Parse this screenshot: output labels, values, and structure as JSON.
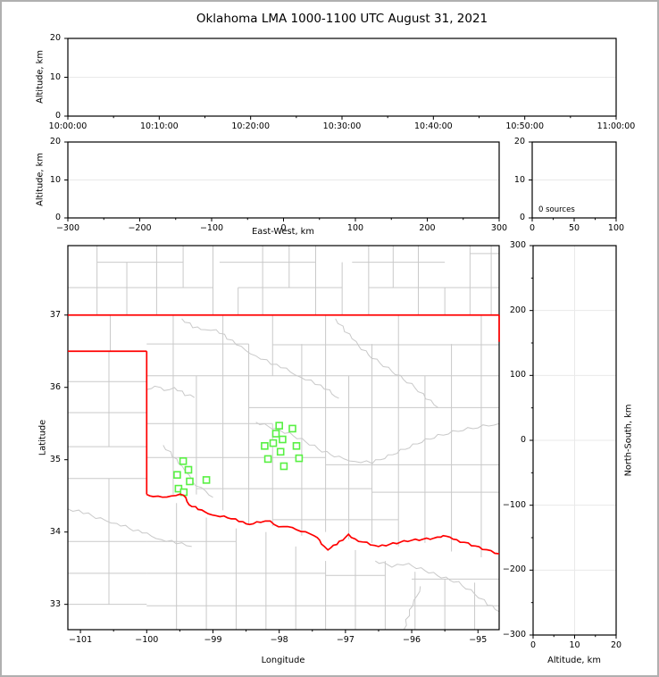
{
  "title": "Oklahoma LMA 1000-1100 UTC August 31, 2021",
  "chart_data": {
    "type": "scatter",
    "style": {
      "state_border_color": "#ff0000",
      "county_color": "#c9c9c9",
      "river_color": "#c9c9c9",
      "station_color": "#58f043",
      "grid_color": "#e9e9e9",
      "axis_color": "#000000"
    },
    "panels": {
      "time_height": {
        "ylabel": "Altitude, km",
        "yticks": [
          0,
          10,
          20
        ],
        "ylim": [
          0,
          20
        ],
        "xticks": [
          "10:00:00",
          "10:10:00",
          "10:20:00",
          "10:30:00",
          "10:40:00",
          "10:50:00",
          "11:00:00"
        ],
        "grid_y": [
          10
        ],
        "points": []
      },
      "ew_height": {
        "xlabel": "East-West, km",
        "ylabel": "Altitude, km",
        "xticks": [
          -300,
          -200,
          -100,
          0,
          100,
          200,
          300
        ],
        "xlim": [
          -300,
          300
        ],
        "yticks": [
          0,
          10,
          20
        ],
        "ylim": [
          0,
          20
        ],
        "grid_y": [
          10
        ],
        "points": []
      },
      "histogram": {
        "annotation": "0 sources",
        "xticks": [
          0,
          50,
          100
        ],
        "xlim": [
          0,
          100
        ],
        "yticks": [
          0,
          10,
          20
        ],
        "ylim": [
          0,
          20
        ],
        "grid_y": [
          10
        ],
        "values": []
      },
      "map": {
        "xlabel": "Longitude",
        "ylabel": "Latitude",
        "xticks": [
          -101,
          -100,
          -99,
          -98,
          -97,
          -96,
          -95
        ],
        "yticks": [
          33,
          34,
          35,
          36,
          37
        ],
        "xlim": [
          -101.19,
          -94.68
        ],
        "ylim": [
          32.65,
          37.96
        ],
        "stations": [
          [
            -99.45,
            34.98
          ],
          [
            -99.37,
            34.86
          ],
          [
            -99.54,
            34.79
          ],
          [
            -99.35,
            34.7
          ],
          [
            -99.1,
            34.72
          ],
          [
            -99.52,
            34.6
          ],
          [
            -99.44,
            34.55
          ],
          [
            -98.0,
            35.47
          ],
          [
            -97.8,
            35.43
          ],
          [
            -98.05,
            35.36
          ],
          [
            -97.95,
            35.28
          ],
          [
            -98.09,
            35.23
          ],
          [
            -98.22,
            35.19
          ],
          [
            -97.74,
            35.19
          ],
          [
            -97.98,
            35.11
          ],
          [
            -98.17,
            35.01
          ],
          [
            -97.7,
            35.02
          ],
          [
            -97.93,
            34.91
          ]
        ],
        "state_border_segments": [
          [
            -101.19,
            37.0,
            -94.68,
            37.0
          ],
          [
            -101.19,
            36.5,
            -100.0,
            36.5
          ],
          [
            -100.0,
            36.5,
            -100.0,
            34.52
          ],
          [
            -94.68,
            37.0,
            -94.68,
            36.63
          ]
        ],
        "state_border_river": [
          [
            -100.0,
            34.52
          ],
          [
            -99.9,
            34.5
          ],
          [
            -99.76,
            34.47
          ],
          [
            -99.63,
            34.5
          ],
          [
            -99.49,
            34.53
          ],
          [
            -99.42,
            34.47
          ],
          [
            -99.36,
            34.38
          ],
          [
            -99.22,
            34.32
          ],
          [
            -99.13,
            34.27
          ],
          [
            -98.95,
            34.23
          ],
          [
            -98.72,
            34.19
          ],
          [
            -98.55,
            34.13
          ],
          [
            -98.45,
            34.11
          ],
          [
            -98.28,
            34.14
          ],
          [
            -98.14,
            34.14
          ],
          [
            -98.01,
            34.08
          ],
          [
            -97.87,
            34.08
          ],
          [
            -97.74,
            34.02
          ],
          [
            -97.6,
            34.01
          ],
          [
            -97.47,
            33.95
          ],
          [
            -97.4,
            33.88
          ],
          [
            -97.27,
            33.76
          ],
          [
            -97.13,
            33.83
          ],
          [
            -96.96,
            33.96
          ],
          [
            -96.8,
            33.88
          ],
          [
            -96.5,
            33.8
          ],
          [
            -96.28,
            33.84
          ],
          [
            -96.06,
            33.88
          ],
          [
            -95.83,
            33.9
          ],
          [
            -95.61,
            33.92
          ],
          [
            -95.52,
            33.96
          ],
          [
            -95.38,
            33.9
          ],
          [
            -95.15,
            33.84
          ],
          [
            -94.93,
            33.77
          ],
          [
            -94.68,
            33.7
          ]
        ],
        "county_segments": [
          [
            -100.75,
            37,
            -100.75,
            37.96
          ],
          [
            -100.3,
            37,
            -100.3,
            37.73
          ],
          [
            -99.85,
            37,
            -99.85,
            37.96
          ],
          [
            -99.45,
            37.38,
            -99.45,
            37.96
          ],
          [
            -99.0,
            37,
            -99.0,
            37.96
          ],
          [
            -98.62,
            37,
            -98.62,
            37.38
          ],
          [
            -98.25,
            37,
            -98.25,
            37.96
          ],
          [
            -97.85,
            37.38,
            -97.85,
            37.96
          ],
          [
            -97.45,
            37,
            -97.45,
            37.96
          ],
          [
            -97.05,
            37,
            -97.05,
            37.73
          ],
          [
            -96.65,
            37,
            -96.65,
            37.96
          ],
          [
            -96.28,
            37.38,
            -96.28,
            37.96
          ],
          [
            -95.9,
            37,
            -95.9,
            37.96
          ],
          [
            -95.5,
            37,
            -95.5,
            37.38
          ],
          [
            -95.12,
            37,
            -95.12,
            37.96
          ],
          [
            -94.8,
            37,
            -94.8,
            37.96
          ],
          [
            -101.19,
            37.38,
            -99.0,
            37.38
          ],
          [
            -98.62,
            37.38,
            -97.05,
            37.38
          ],
          [
            -96.65,
            37.38,
            -94.68,
            37.38
          ],
          [
            -100.75,
            37.73,
            -99.45,
            37.73
          ],
          [
            -98.9,
            37.73,
            -97.45,
            37.73
          ],
          [
            -96.9,
            37.73,
            -95.5,
            37.73
          ],
          [
            -95.12,
            37.85,
            -94.68,
            37.85
          ],
          [
            -100.55,
            36.5,
            -100.55,
            37.0
          ],
          [
            -100.57,
            35.18,
            -100.57,
            36.5
          ],
          [
            -100.57,
            33.0,
            -100.57,
            34.74
          ],
          [
            -101.19,
            36.08,
            -100.0,
            36.08
          ],
          [
            -101.19,
            35.65,
            -100.0,
            35.65
          ],
          [
            -101.19,
            35.18,
            -100.0,
            35.18
          ],
          [
            -101.19,
            34.74,
            -100.0,
            34.74
          ],
          [
            -101.19,
            33.87,
            -100.0,
            33.87
          ],
          [
            -101.19,
            33.43,
            -100.0,
            33.43
          ],
          [
            -101.19,
            33.0,
            -100.0,
            33.0
          ],
          [
            -99.6,
            34.52,
            -99.6,
            37.0
          ],
          [
            -99.25,
            34.52,
            -99.25,
            36.16
          ],
          [
            -98.85,
            34.3,
            -98.85,
            37.0
          ],
          [
            -98.46,
            34.1,
            -98.46,
            36.6
          ],
          [
            -98.1,
            34.08,
            -98.1,
            35.5
          ],
          [
            -98.1,
            36.16,
            -98.1,
            37.0
          ],
          [
            -97.66,
            33.95,
            -97.66,
            36.6
          ],
          [
            -97.3,
            34.0,
            -97.3,
            37.0
          ],
          [
            -96.95,
            33.9,
            -96.95,
            36.16
          ],
          [
            -96.6,
            33.85,
            -96.6,
            36.6
          ],
          [
            -96.2,
            33.8,
            -96.2,
            37.0
          ],
          [
            -95.8,
            33.85,
            -95.8,
            36.16
          ],
          [
            -95.4,
            33.73,
            -95.4,
            36.6
          ],
          [
            -94.95,
            33.65,
            -94.95,
            37.0
          ],
          [
            -100.0,
            36.6,
            -98.46,
            36.6
          ],
          [
            -98.1,
            36.59,
            -94.68,
            36.59
          ],
          [
            -100.0,
            36.16,
            -94.68,
            36.16
          ],
          [
            -98.46,
            35.72,
            -94.68,
            35.72
          ],
          [
            -100.0,
            35.5,
            -98.1,
            35.5
          ],
          [
            -100.0,
            35.03,
            -97.3,
            35.03
          ],
          [
            -97.3,
            34.93,
            -94.68,
            34.93
          ],
          [
            -99.25,
            34.6,
            -96.6,
            34.6
          ],
          [
            -96.6,
            34.55,
            -94.68,
            34.55
          ],
          [
            -98.1,
            34.17,
            -96.2,
            34.17
          ],
          [
            -99.55,
            32.65,
            -99.55,
            34.4
          ],
          [
            -99.1,
            32.65,
            -99.1,
            34.2
          ],
          [
            -98.65,
            32.65,
            -98.65,
            34.05
          ],
          [
            -98.2,
            32.65,
            -98.2,
            34.0
          ],
          [
            -97.75,
            32.65,
            -97.75,
            33.8
          ],
          [
            -97.3,
            32.65,
            -97.3,
            33.6
          ],
          [
            -96.85,
            32.65,
            -96.85,
            33.75
          ],
          [
            -96.4,
            32.65,
            -96.4,
            33.6
          ],
          [
            -95.95,
            32.65,
            -95.95,
            33.45
          ],
          [
            -95.5,
            32.65,
            -95.5,
            33.35
          ],
          [
            -95.05,
            32.65,
            -95.05,
            33.3
          ],
          [
            -100.0,
            33.87,
            -98.65,
            33.87
          ],
          [
            -100.0,
            33.43,
            -97.3,
            33.43
          ],
          [
            -97.3,
            33.4,
            -96.4,
            33.4
          ],
          [
            -100.0,
            32.98,
            -94.68,
            32.98
          ],
          [
            -96.0,
            33.35,
            -94.68,
            33.35
          ]
        ],
        "rivers": [
          [
            [
              -99.47,
              36.95
            ],
            [
              -99.3,
              36.84
            ],
            [
              -99.12,
              36.78
            ],
            [
              -98.95,
              36.8
            ],
            [
              -98.78,
              36.68
            ],
            [
              -98.58,
              36.55
            ],
            [
              -98.35,
              36.44
            ],
            [
              -98.12,
              36.33
            ],
            [
              -97.9,
              36.25
            ],
            [
              -97.68,
              36.15
            ],
            [
              -97.45,
              36.05
            ],
            [
              -97.25,
              35.95
            ],
            [
              -97.1,
              35.85
            ]
          ],
          [
            [
              -100.0,
              35.97
            ],
            [
              -99.87,
              36.03
            ],
            [
              -99.73,
              35.94
            ],
            [
              -99.58,
              36.0
            ],
            [
              -99.42,
              35.9
            ],
            [
              -99.28,
              35.86
            ]
          ],
          [
            [
              -97.15,
              36.95
            ],
            [
              -97.0,
              36.78
            ],
            [
              -96.85,
              36.62
            ],
            [
              -96.65,
              36.45
            ],
            [
              -96.42,
              36.3
            ],
            [
              -96.18,
              36.15
            ],
            [
              -95.95,
              36.0
            ],
            [
              -95.78,
              35.85
            ],
            [
              -95.6,
              35.72
            ]
          ],
          [
            [
              -98.35,
              35.52
            ],
            [
              -98.1,
              35.44
            ],
            [
              -97.85,
              35.36
            ],
            [
              -97.6,
              35.25
            ],
            [
              -97.35,
              35.12
            ],
            [
              -97.1,
              35.03
            ],
            [
              -96.85,
              34.98
            ],
            [
              -96.6,
              34.96
            ],
            [
              -96.35,
              35.05
            ],
            [
              -96.1,
              35.15
            ],
            [
              -95.85,
              35.25
            ],
            [
              -95.6,
              35.33
            ],
            [
              -95.3,
              35.4
            ],
            [
              -95.0,
              35.45
            ],
            [
              -94.68,
              35.5
            ]
          ],
          [
            [
              -101.19,
              34.32
            ],
            [
              -100.95,
              34.27
            ],
            [
              -100.7,
              34.18
            ],
            [
              -100.45,
              34.12
            ],
            [
              -100.2,
              34.03
            ],
            [
              -100.0,
              33.97
            ],
            [
              -99.78,
              33.9
            ],
            [
              -99.55,
              33.85
            ],
            [
              -99.32,
              33.8
            ]
          ],
          [
            [
              -96.55,
              33.6
            ],
            [
              -96.3,
              33.53
            ],
            [
              -96.05,
              33.55
            ],
            [
              -95.8,
              33.47
            ],
            [
              -95.55,
              33.38
            ],
            [
              -95.3,
              33.3
            ],
            [
              -95.05,
              33.15
            ],
            [
              -94.85,
              33.0
            ],
            [
              -94.68,
              32.9
            ]
          ],
          [
            [
              -96.12,
              32.65
            ],
            [
              -96.05,
              32.85
            ],
            [
              -95.95,
              33.05
            ],
            [
              -95.87,
              33.25
            ]
          ],
          [
            [
              -99.75,
              35.2
            ],
            [
              -99.6,
              35.05
            ],
            [
              -99.48,
              34.9
            ],
            [
              -99.35,
              34.78
            ],
            [
              -99.25,
              34.65
            ],
            [
              -99.12,
              34.55
            ],
            [
              -99.0,
              34.48
            ]
          ]
        ]
      },
      "ns_height": {
        "xlabel": "Altitude, km",
        "ylabel": "North-South, km",
        "xticks": [
          0,
          10,
          20
        ],
        "xlim": [
          0,
          20
        ],
        "yticks": [
          -300,
          -200,
          -100,
          0,
          100,
          200,
          300
        ],
        "ylim": [
          -300,
          300
        ],
        "grid_y": [
          -200,
          -100,
          0,
          100,
          200
        ],
        "grid_x": [
          10
        ],
        "points": []
      }
    }
  }
}
